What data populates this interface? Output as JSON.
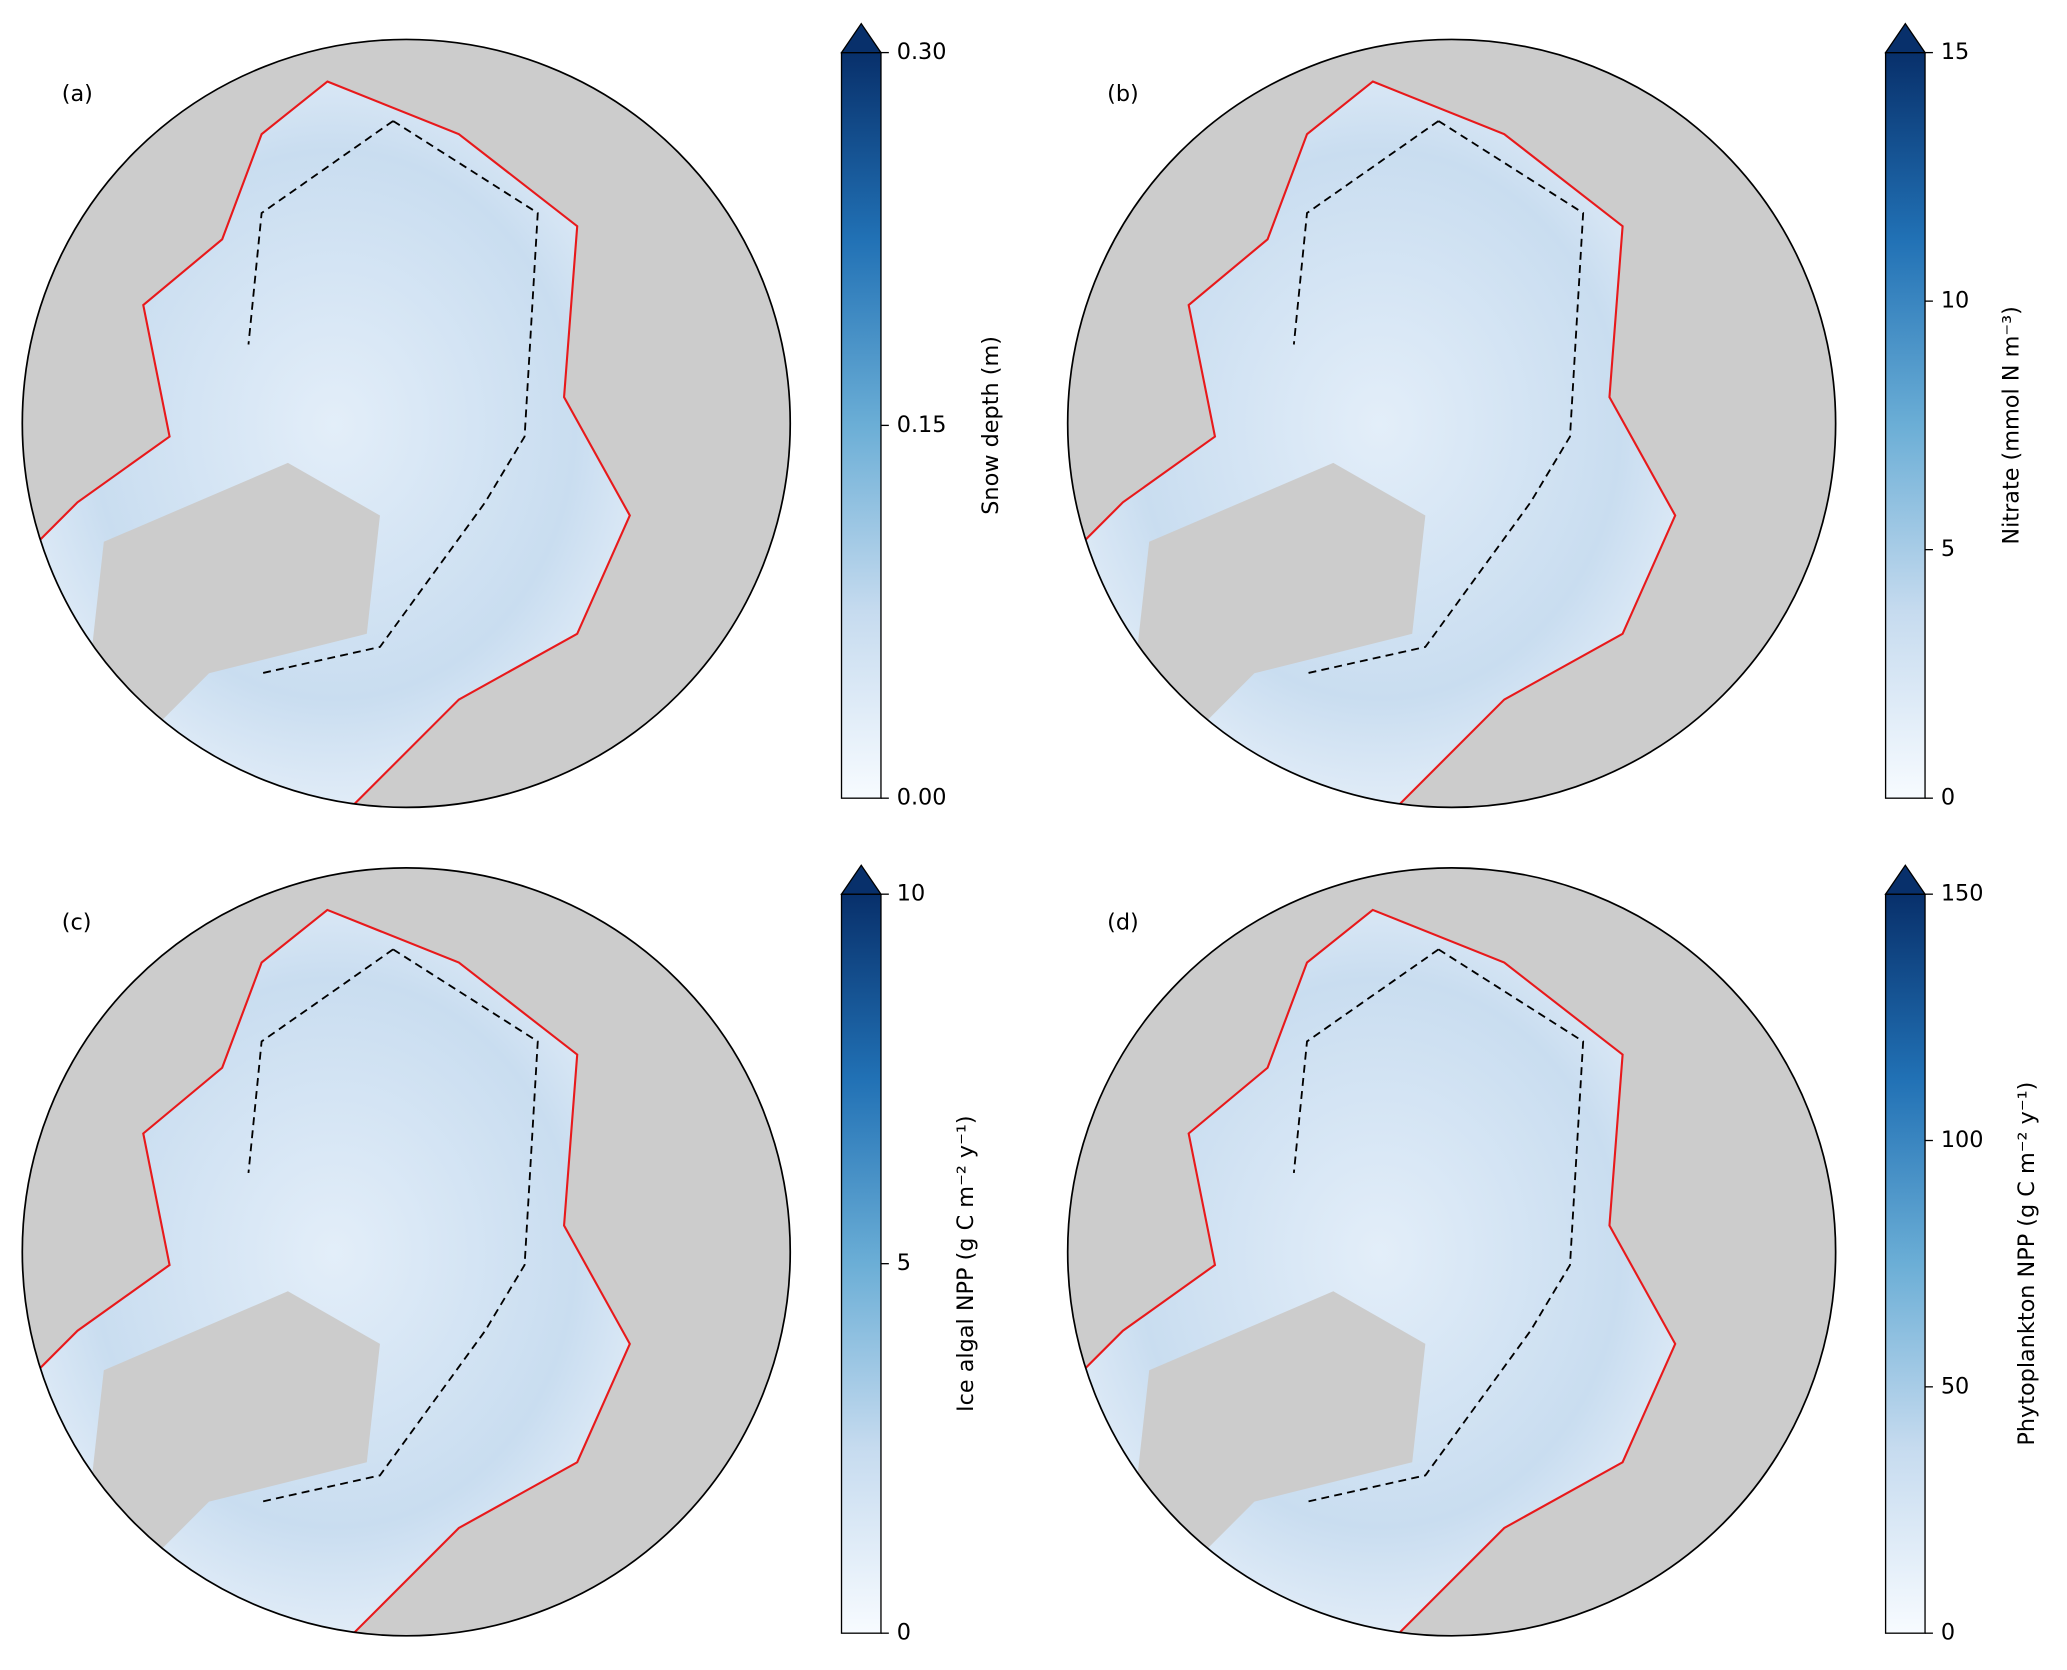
{
  "panels": [
    {
      "label": "(a)",
      "colorbar": {
        "label": "Snow depth (m)",
        "lim": [
          0,
          0.3
        ],
        "ticks": [
          {
            "value": 0,
            "label": "0.00"
          },
          {
            "value": 0.15,
            "label": "0.15"
          },
          {
            "value": 0.3,
            "label": "0.30"
          }
        ],
        "extend": "max"
      }
    },
    {
      "label": "(b)",
      "colorbar": {
        "label": "Nitrate (mmol N m⁻³)",
        "lim": [
          0,
          15
        ],
        "ticks": [
          0,
          5,
          10,
          15
        ],
        "extend": "max"
      }
    },
    {
      "label": "(c)",
      "colorbar": {
        "label": "Ice algal NPP (g C m⁻² y⁻¹)",
        "lim": [
          0,
          10
        ],
        "ticks": [
          0,
          5,
          10
        ],
        "extend": "max"
      }
    },
    {
      "label": "(d)",
      "colorbar": {
        "label": "Phytoplankton NPP (g C m⁻² y⁻¹)",
        "lim": [
          0,
          150
        ],
        "ticks": [
          0,
          50,
          100,
          150
        ],
        "extend": "max"
      }
    }
  ]
}
